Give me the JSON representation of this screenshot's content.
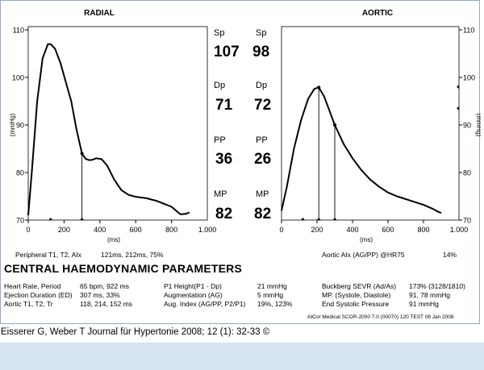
{
  "charts": {
    "radial": {
      "title": "RADIAL"
    },
    "aortic": {
      "title": "AORTIC"
    }
  },
  "chart_data": [
    {
      "type": "line",
      "title": "RADIAL",
      "xlabel": "(ms)",
      "ylabel": "(mmHg)",
      "xlim": [
        0,
        1000
      ],
      "ylim": [
        70,
        110
      ],
      "xticks": [
        0,
        200,
        400,
        600,
        800
      ],
      "xtick_labels": [
        "0",
        "200",
        "400",
        "600",
        "800"
      ],
      "x_end_label": "1.000",
      "yticks": [
        70,
        80,
        90,
        100,
        110
      ],
      "y_axis_side": "left",
      "series": [
        {
          "x": [
            0,
            20,
            50,
            80,
            110,
            125,
            150,
            180,
            210,
            240,
            270,
            300,
            320,
            340,
            360,
            380,
            410,
            440,
            480,
            520,
            560,
            600,
            660,
            720,
            800,
            850,
            880,
            900
          ],
          "y": [
            71,
            80,
            95,
            104,
            107,
            107,
            106,
            103,
            99,
            95,
            89,
            84,
            82.9,
            82.6,
            82.7,
            83,
            82.8,
            81.5,
            78.5,
            76.3,
            75.3,
            74.9,
            74.6,
            74,
            72.8,
            71.2,
            71.3,
            71.6
          ]
        }
      ],
      "markers": [
        {
          "x": 300,
          "y": 84
        }
      ],
      "axis_markers_x": [
        125,
        300
      ]
    },
    {
      "type": "line",
      "title": "AORTIC",
      "xlabel": "(ms)",
      "ylabel": "(mmHg)",
      "xlim": [
        0,
        1000
      ],
      "ylim": [
        70,
        110
      ],
      "xticks": [
        0,
        200,
        400,
        600,
        800
      ],
      "xtick_labels": [
        "0",
        "200",
        "400",
        "600",
        "800"
      ],
      "x_end_label": "1.000",
      "yticks": [
        70,
        80,
        90,
        100,
        110
      ],
      "y_axis_side": "right",
      "series": [
        {
          "x": [
            0,
            30,
            70,
            110,
            150,
            185,
            210,
            240,
            270,
            300,
            350,
            400,
            450,
            500,
            550,
            600,
            650,
            700,
            750,
            800,
            850,
            880,
            900
          ],
          "y": [
            72,
            77,
            85,
            91,
            95.5,
            97.6,
            97.9,
            96,
            93,
            90,
            86,
            83,
            80.5,
            78.5,
            77,
            75.8,
            75,
            74.4,
            73.8,
            73.2,
            72.4,
            71.8,
            71.5
          ]
        }
      ],
      "markers": [
        {
          "x": 210,
          "y": 97.9
        },
        {
          "x": 300,
          "y": 90
        }
      ],
      "axis_markers_x": [
        120,
        210,
        300
      ],
      "right_axis_markers_y": [
        98,
        93.5
      ]
    }
  ],
  "center": {
    "sp": {
      "label": "Sp",
      "radial": "107",
      "aortic": "98"
    },
    "dp": {
      "label": "Dp",
      "radial": "71",
      "aortic": "72"
    },
    "pp": {
      "label": "PP",
      "radial": "36",
      "aortic": "26"
    },
    "mp": {
      "label": "MP",
      "radial": "82",
      "aortic": "82"
    }
  },
  "peripheral": {
    "label": "Peripheral T1, T2, AIx",
    "value": "121ms, 212ms, 75%"
  },
  "aortic_aix": {
    "label": "Aortic AIx  (AG/PP) @HR75",
    "value": "14%"
  },
  "section_title": "CENTRAL HAEMODYNAMIC PARAMETERS",
  "params": {
    "col1": [
      {
        "label": "Heart Rate, Period",
        "value": "65 bpm, 922 ms"
      },
      {
        "label": "Ejection Duration (ED)",
        "value": "307 ms, 33%"
      },
      {
        "label": "Aortic T1, T2, Tr",
        "value": "118, 214, 152 ms"
      }
    ],
    "col2": [
      {
        "label": "P1 Height(P1 - Dp)",
        "value": "21 mmHg"
      },
      {
        "label": "Augmentation (AG)",
        "value": "5 mmHg"
      },
      {
        "label": "Aug. Index (AG/PP, P2/P1)",
        "value": "19%, 123%"
      }
    ],
    "col3": [
      {
        "label": "Buckberg SEVR (Ad/As)",
        "value": "173% (3128/1810)"
      },
      {
        "label": "MP. (Systole, Diastole)",
        "value": "91, 78 mmHg"
      },
      {
        "label": "End Systolic Pressure",
        "value": "91 mmHg"
      }
    ]
  },
  "footer": "AtCor Medical SCOR-2000 7.0 (00070) 120 TEST  08 Jan 2008",
  "caption": "Eisserer G, Weber T Journal für Hypertonie 2008; 12 (1): 32-33 ©",
  "colors": {
    "panel_border": "#8fa9c9",
    "strip": "#d6e3f0",
    "line": "#000000"
  }
}
